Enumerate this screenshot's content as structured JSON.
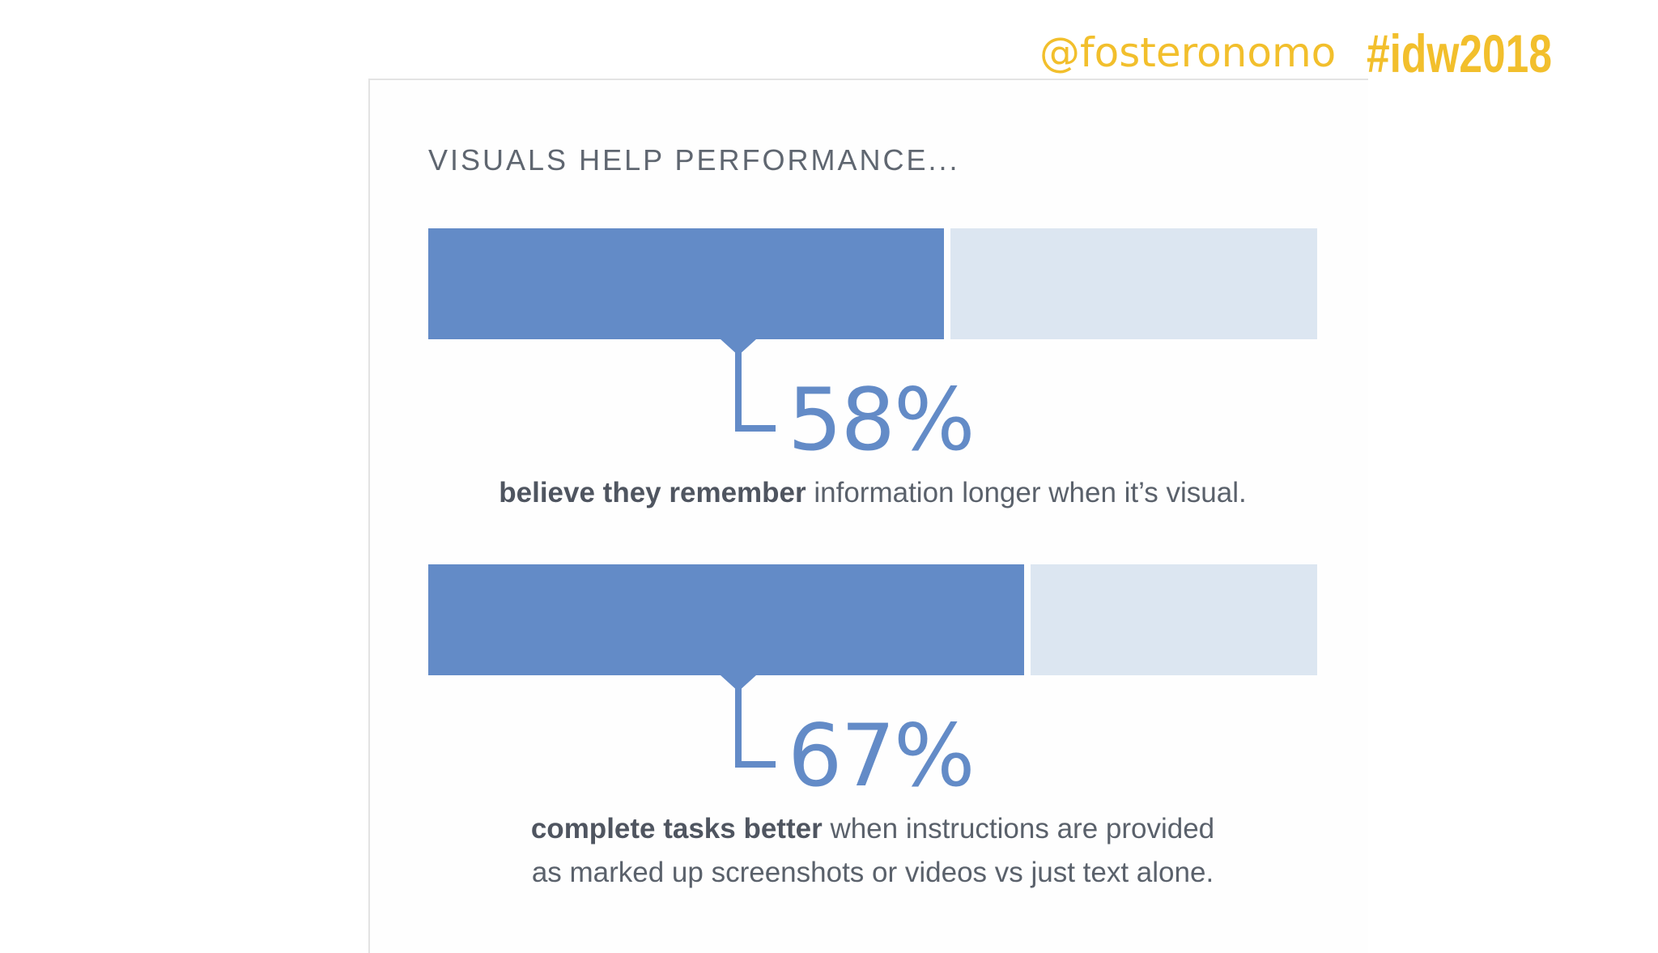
{
  "header": {
    "handle": "@fosteronomo",
    "hashtag": "#idw2018"
  },
  "colors": {
    "accent_yellow": "#f2bf2c",
    "bar_fill": "#638bc7",
    "bar_track": "#dce6f1",
    "text": "#5a616b"
  },
  "card": {
    "heading": "VISUALS HELP PERFORMANCE..."
  },
  "chart_data": [
    {
      "type": "bar",
      "value": 58,
      "max": 100,
      "label": "58%",
      "caption_bold": "believe they remember",
      "caption_rest": " information longer when it’s visual."
    },
    {
      "type": "bar",
      "value": 67,
      "max": 100,
      "label": "67%",
      "caption_bold": "complete tasks better",
      "caption_rest": " when instructions are provided as marked up screenshots or videos vs just text alone."
    }
  ]
}
